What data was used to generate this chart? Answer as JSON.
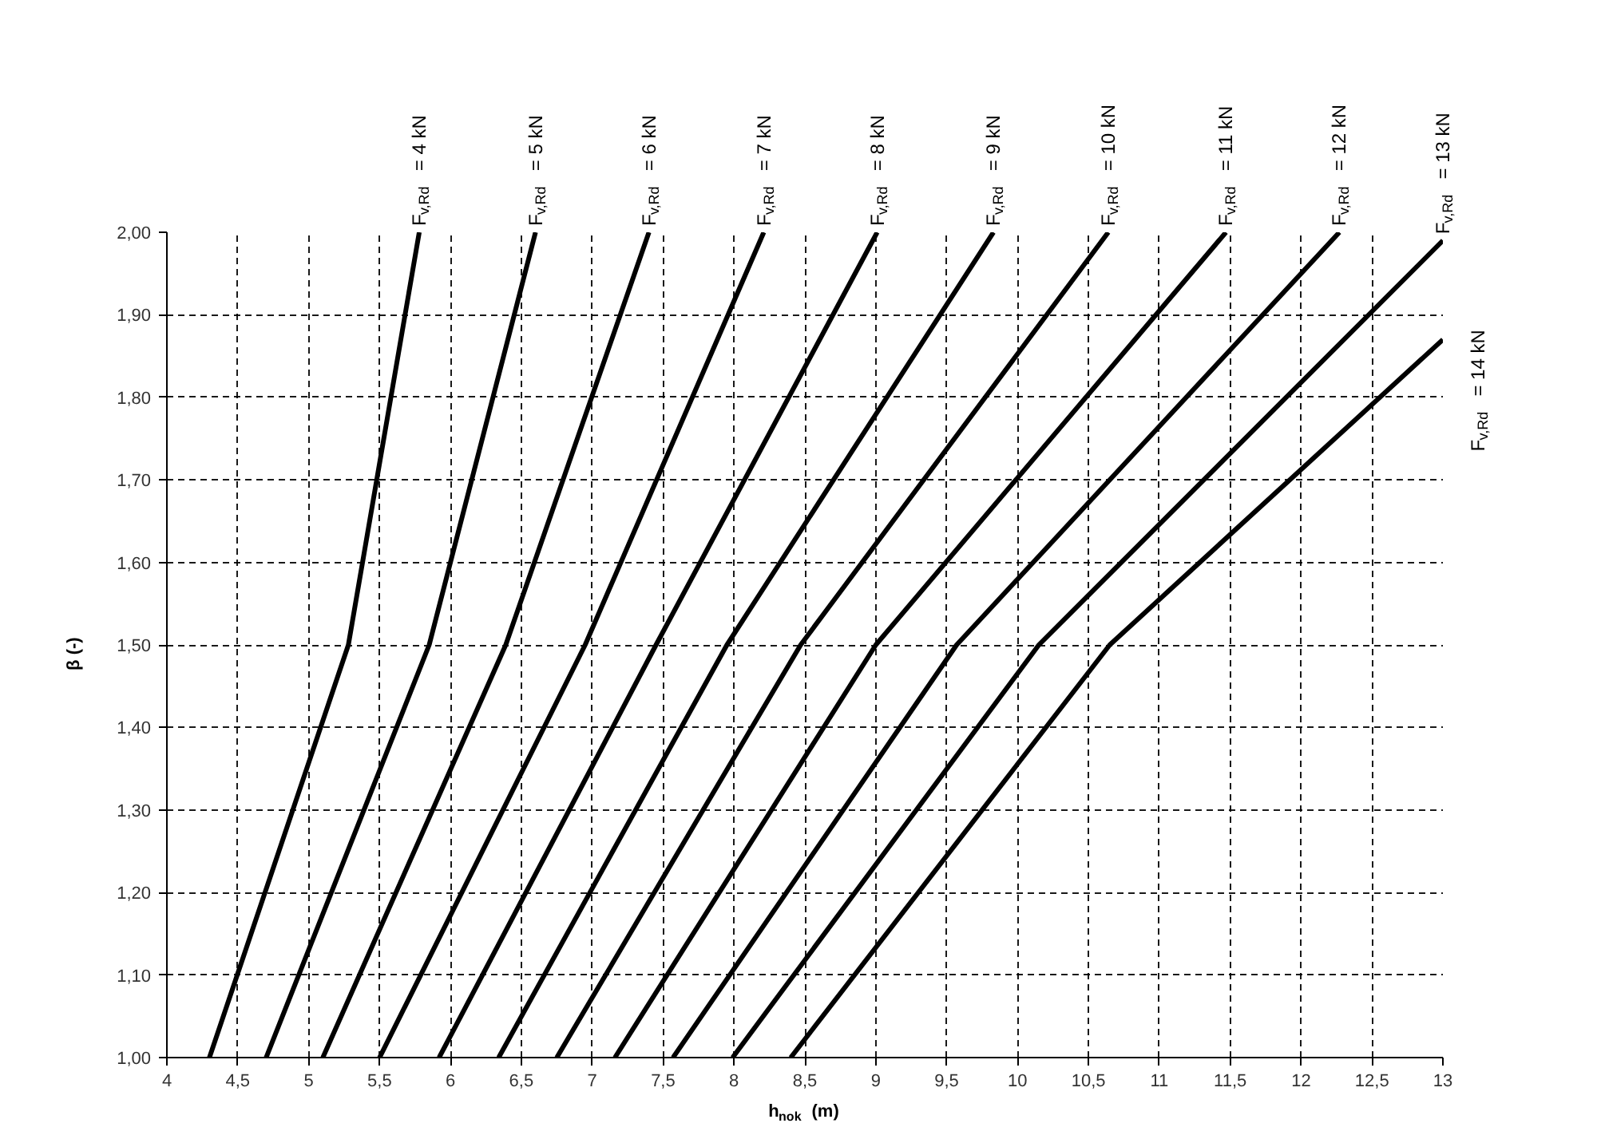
{
  "chart_data": {
    "type": "line",
    "xlabel": "h$_{nok}$ (m)",
    "ylabel": "β (-)",
    "xlim": [
      4,
      13
    ],
    "ylim": [
      1.0,
      2.0
    ],
    "xticks": [
      4,
      {
        "value": 4.5,
        "label": "4,5"
      },
      5,
      {
        "value": 5.5,
        "label": "5,5"
      },
      6,
      {
        "value": 6.5,
        "label": "6,5"
      },
      7,
      {
        "value": 7.5,
        "label": "7,5"
      },
      8,
      {
        "value": 8.5,
        "label": "8,5"
      },
      9,
      {
        "value": 9.5,
        "label": "9,5"
      },
      10,
      {
        "value": 10.5,
        "label": "10,5"
      },
      11,
      {
        "value": 11.5,
        "label": "11,5"
      },
      12,
      {
        "value": 12.5,
        "label": "12,5"
      },
      13
    ],
    "yticks": [
      {
        "value": 1.0,
        "label": "1,00"
      },
      {
        "value": 1.1,
        "label": "1,10"
      },
      {
        "value": 1.2,
        "label": "1,20"
      },
      {
        "value": 1.3,
        "label": "1,30"
      },
      {
        "value": 1.4,
        "label": "1,40"
      },
      {
        "value": 1.5,
        "label": "1,50"
      },
      {
        "value": 1.6,
        "label": "1,60"
      },
      {
        "value": 1.7,
        "label": "1,70"
      },
      {
        "value": 1.8,
        "label": "1,80"
      },
      {
        "value": 1.9,
        "label": "1,90"
      },
      {
        "value": 2.0,
        "label": "2,00"
      }
    ],
    "grid": true,
    "legend": false,
    "line_style": "solid",
    "marker": "none",
    "series": [
      {
        "name": "F$_{v,Rd}$ = 4 kN",
        "color": "#000000",
        "x": [
          4.3,
          5.28,
          5.78
        ],
        "values": [
          1.0,
          1.5,
          2.0
        ]
      },
      {
        "name": "F$_{v,Rd}$ = 5 kN",
        "color": "#000000",
        "x": [
          4.7,
          5.85,
          6.6
        ],
        "values": [
          1.0,
          1.5,
          2.0
        ]
      },
      {
        "name": "F$_{v,Rd}$ = 6 kN",
        "color": "#000000",
        "x": [
          5.1,
          6.39,
          7.4
        ],
        "values": [
          1.0,
          1.5,
          2.0
        ]
      },
      {
        "name": "F$_{v,Rd}$ = 7 kN",
        "color": "#000000",
        "x": [
          5.5,
          6.95,
          8.21
        ],
        "values": [
          1.0,
          1.5,
          2.0
        ]
      },
      {
        "name": "F$_{v,Rd}$ = 8 kN",
        "color": "#000000",
        "x": [
          5.92,
          7.45,
          9.01
        ],
        "values": [
          1.0,
          1.5,
          2.0
        ]
      },
      {
        "name": "F$_{v,Rd}$ = 9 kN",
        "color": "#000000",
        "x": [
          6.34,
          7.95,
          9.83
        ],
        "values": [
          1.0,
          1.5,
          2.0
        ]
      },
      {
        "name": "F$_{v,Rd}$ = 10 kN",
        "color": "#000000",
        "x": [
          6.75,
          8.47,
          10.64
        ],
        "values": [
          1.0,
          1.5,
          2.0
        ]
      },
      {
        "name": "F$_{v,Rd}$ = 11 kN",
        "color": "#000000",
        "x": [
          7.16,
          9.0,
          11.47
        ],
        "values": [
          1.0,
          1.5,
          2.0
        ]
      },
      {
        "name": "F$_{v,Rd}$ = 12 kN",
        "color": "#000000",
        "x": [
          7.57,
          9.57,
          12.27
        ],
        "values": [
          1.0,
          1.5,
          2.0
        ]
      },
      {
        "name": "F$_{v,Rd}$ = 13 kN",
        "color": "#000000",
        "x": [
          7.99,
          10.15,
          13.0
        ],
        "values": [
          1.0,
          1.5,
          1.99
        ]
      },
      {
        "name": "F$_{v,Rd}$ = 14 kN",
        "color": "#000000",
        "x": [
          8.4,
          10.65,
          13.0
        ],
        "values": [
          1.0,
          1.5,
          1.87
        ]
      }
    ]
  }
}
